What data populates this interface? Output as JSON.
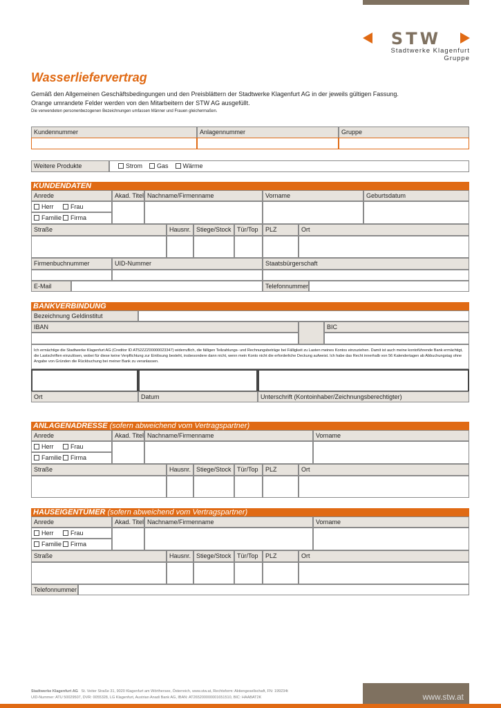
{
  "header": {
    "logo_text": "STW",
    "logo_subtitle": "Stadtwerke Klagenfurt Gruppe",
    "title": "Wasserliefervertrag",
    "intro1": "Gemäß den Allgemeinen Geschäftsbedingungen und den Preisblättern der Stadtwerke Klagenfurt AG in der jeweils gültigen Fassung.",
    "intro2": "Orange umrandete Felder werden von den Mitarbeitern der STW AG ausgefüllt.",
    "note": "Die verwendeten personenbezogenen Bezeichnungen umfassen Männer und Frauen gleichermaßen."
  },
  "top": {
    "kundennummer": "Kundennummer",
    "anlagennummer": "Anlagennummer",
    "gruppe": "Gruppe",
    "weitere_produkte": "Weitere Produkte",
    "options": [
      "Strom",
      "Gas",
      "Wärme"
    ]
  },
  "kunden": {
    "title": "KUNDENDATEN",
    "anrede": "Anrede",
    "akad_titel": "Akad. Titel",
    "nachname": "Nachname/Firmenname",
    "vorname": "Vorname",
    "geburtsdatum": "Geburtsdatum",
    "herr": "Herr",
    "frau": "Frau",
    "familie": "Familie",
    "firma": "Firma",
    "strasse": "Straße",
    "hausnr": "Hausnr.",
    "stiege": "Stiege/Stock",
    "tuer": "Tür/Top",
    "plz": "PLZ",
    "ort": "Ort",
    "firmenbuch": "Firmenbuchnummer",
    "uid": "UID-Nummer",
    "staatsbuerger": "Staatsbürgerschaft",
    "email": "E-Mail",
    "telefon": "Telefonnummer"
  },
  "bank": {
    "title": "BANKVERBINDUNG",
    "geldinstitut": "Bezeichnung Geldinstitut",
    "iban": "IBAN",
    "bic": "BIC",
    "mandate": "Ich ermächtige die Stadtwerke Klagenfurt AG (Creditor ID AT52ZZZ00000023347) widerruflich, die fälligen Teilzahlungs- und Rechnungsbeträge bei Fälligkeit zu Lasten meines Kontos einzuziehen. Damit ist auch meine kontoführende Bank ermächtigt, die Lastschriften einzulösen, wobei für diese keine Verpflichtung zur Einlösung besteht, insbesondere dann nicht, wenn mein Konto nicht die erforderliche Deckung aufweist. Ich habe das Recht innerhalb von 56 Kalendertagen ab Abbuchungstag ohne Angabe von Gründen die Rückbuchung bei meiner Bank zu veranlassen.",
    "ort": "Ort",
    "datum": "Datum",
    "unterschrift": "Unterschrift (Kontoinhaber/Zeichnungsberechtigter)"
  },
  "anlage": {
    "title": "ANLAGENADRESSE",
    "subtitle": "(sofern abweichend vom Vertragspartner)"
  },
  "haus": {
    "title": "HAUSEIGENTÜMER",
    "subtitle": "(sofern abweichend vom Vertragspartner)",
    "telefon": "Telefonnummer"
  },
  "footer": {
    "company": "Stadtwerke Klagenfurt AG",
    "address": "St. Veiter Straße 31, 9020 Klagenfurt am Wörthersee, Österreich, www.stw.at, Rechtsform: Aktiengesellschaft, FN: 199234t",
    "line2": "UID-Nummer: ATU 50029507, DVR: 0055328, LG Klagenfurt, Austrian Anadi Bank AG, IBAN: AT265200000001651510, BIC: HAABAT2K",
    "url": "www.stw.at"
  },
  "colors": {
    "accent": "#e06a14",
    "brand_gray": "#7f7160",
    "header_cell": "#e7e3dd"
  }
}
